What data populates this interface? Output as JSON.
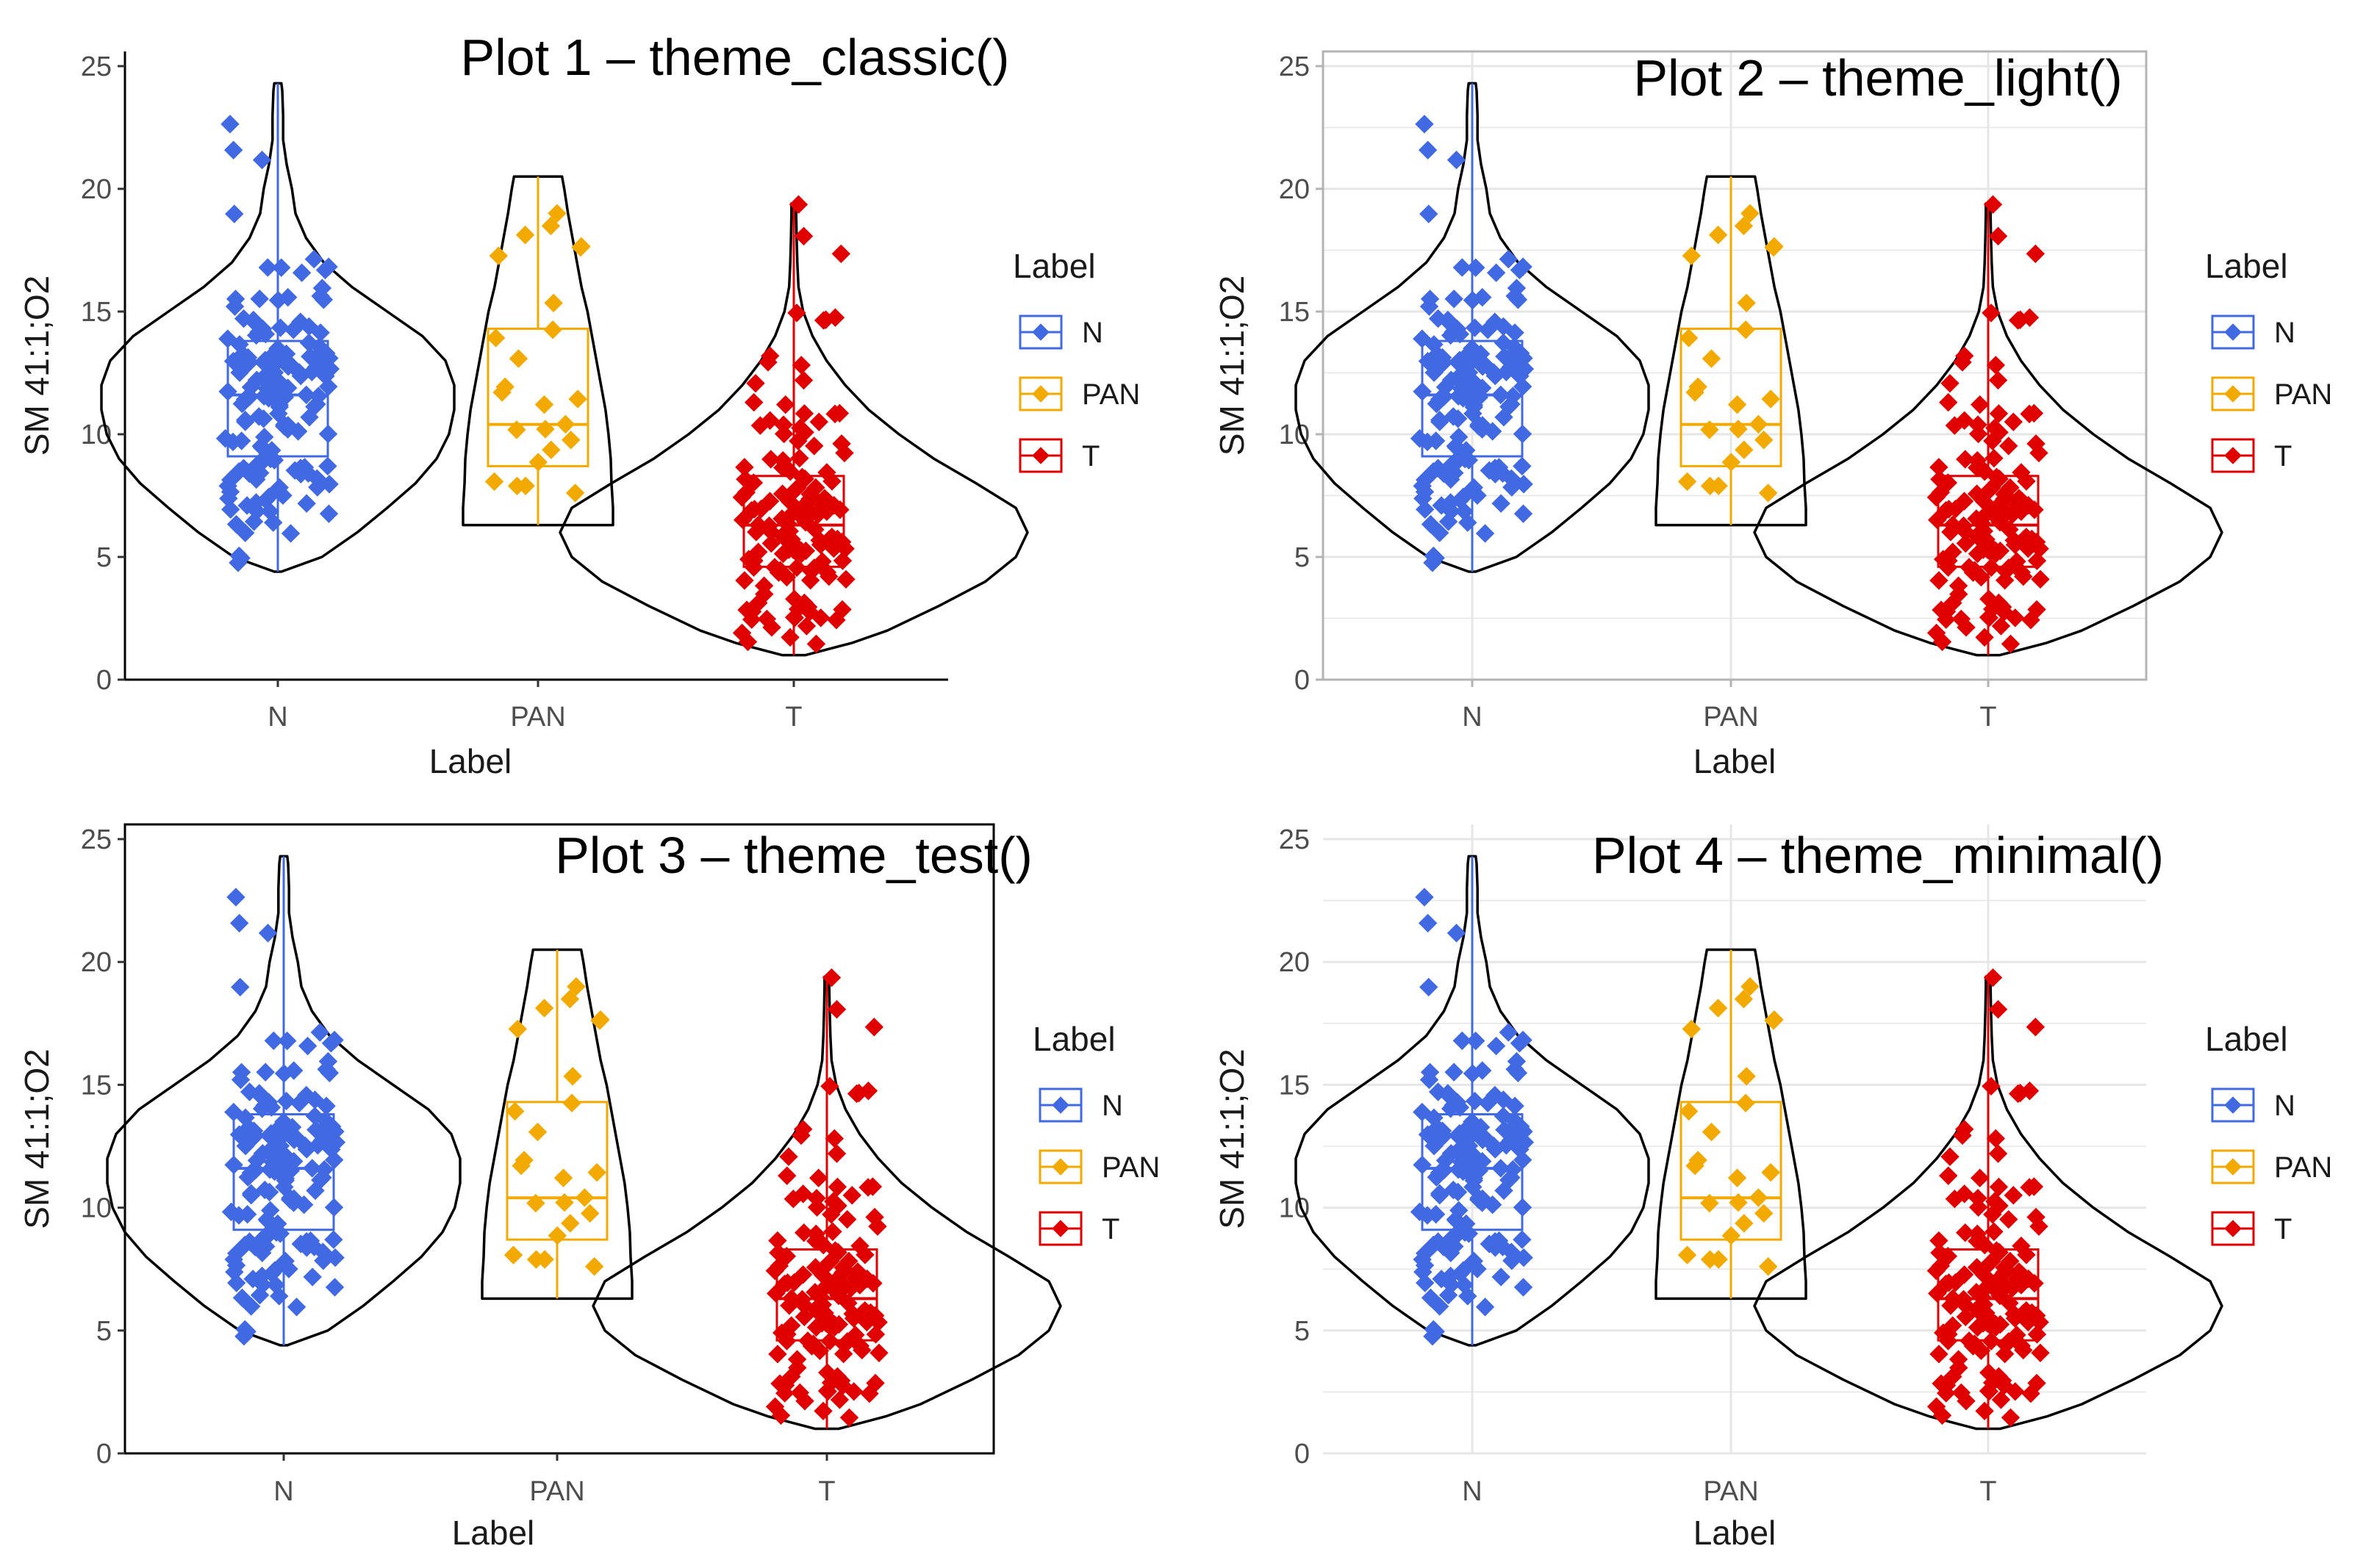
{
  "colors": {
    "N": "#4169E1",
    "PAN": "#F2A900",
    "T": "#E00000",
    "violin": "#000000",
    "grid_light": "#e6e6e6",
    "panel_border": "#b3b3b3"
  },
  "chart_data": [
    {
      "type": "violin",
      "title": "Plot 1 – theme_classic()",
      "theme": "classic",
      "xlabel": "Label",
      "ylabel": "SM 41:1;O2",
      "categories": [
        "N",
        "PAN",
        "T"
      ],
      "ylim": [
        0,
        25
      ],
      "yticks": [
        0,
        5,
        10,
        15,
        20,
        25
      ],
      "grid": false,
      "legend": {
        "title": "Label",
        "position": "right",
        "entries": [
          "N",
          "PAN",
          "T"
        ]
      },
      "boxes": [
        {
          "category": "N",
          "min": 4.4,
          "q1": 9.1,
          "median": 11.6,
          "q3": 13.8,
          "max": 24.3
        },
        {
          "category": "PAN",
          "min": 6.3,
          "q1": 8.7,
          "median": 10.4,
          "q3": 14.3,
          "max": 20.5
        },
        {
          "category": "T",
          "min": 1.0,
          "q1": 4.6,
          "median": 6.3,
          "q3": 8.3,
          "max": 19.4
        }
      ]
    },
    {
      "type": "violin",
      "title": "Plot 2 – theme_light()",
      "theme": "light",
      "xlabel": "Label",
      "ylabel": "SM 41:1;O2",
      "categories": [
        "N",
        "PAN",
        "T"
      ],
      "ylim": [
        0,
        25
      ],
      "yticks": [
        0,
        5,
        10,
        15,
        20,
        25
      ],
      "grid": true,
      "legend": {
        "title": "Label",
        "position": "right",
        "entries": [
          "N",
          "PAN",
          "T"
        ]
      },
      "boxes": [
        {
          "category": "N",
          "min": 4.4,
          "q1": 9.1,
          "median": 11.6,
          "q3": 13.8,
          "max": 24.3
        },
        {
          "category": "PAN",
          "min": 6.3,
          "q1": 8.7,
          "median": 10.4,
          "q3": 14.3,
          "max": 20.5
        },
        {
          "category": "T",
          "min": 1.0,
          "q1": 4.6,
          "median": 6.3,
          "q3": 8.3,
          "max": 19.4
        }
      ]
    },
    {
      "type": "violin",
      "title": "Plot 3 – theme_test()",
      "theme": "test",
      "xlabel": "Label",
      "ylabel": "SM 41:1;O2",
      "categories": [
        "N",
        "PAN",
        "T"
      ],
      "ylim": [
        0,
        25
      ],
      "yticks": [
        0,
        5,
        10,
        15,
        20,
        25
      ],
      "grid": false,
      "legend": {
        "title": "Label",
        "position": "right",
        "entries": [
          "N",
          "PAN",
          "T"
        ]
      },
      "boxes": [
        {
          "category": "N",
          "min": 4.4,
          "q1": 9.1,
          "median": 11.6,
          "q3": 13.8,
          "max": 24.3
        },
        {
          "category": "PAN",
          "min": 6.3,
          "q1": 8.7,
          "median": 10.4,
          "q3": 14.3,
          "max": 20.5
        },
        {
          "category": "T",
          "min": 1.0,
          "q1": 4.6,
          "median": 6.3,
          "q3": 8.3,
          "max": 19.4
        }
      ]
    },
    {
      "type": "violin",
      "title": "Plot 4 – theme_minimal()",
      "theme": "minimal",
      "xlabel": "Label",
      "ylabel": "SM 41:1;O2",
      "categories": [
        "N",
        "PAN",
        "T"
      ],
      "ylim": [
        0,
        25
      ],
      "yticks": [
        0,
        5,
        10,
        15,
        20,
        25
      ],
      "grid": true,
      "legend": {
        "title": "Label",
        "position": "right",
        "entries": [
          "N",
          "PAN",
          "T"
        ]
      },
      "boxes": [
        {
          "category": "N",
          "min": 4.4,
          "q1": 9.1,
          "median": 11.6,
          "q3": 13.8,
          "max": 24.3
        },
        {
          "category": "PAN",
          "min": 6.3,
          "q1": 8.7,
          "median": 10.4,
          "q3": 14.3,
          "max": 20.5
        },
        {
          "category": "T",
          "min": 1.0,
          "q1": 4.6,
          "median": 6.3,
          "q3": 8.3,
          "max": 19.4
        }
      ]
    }
  ]
}
